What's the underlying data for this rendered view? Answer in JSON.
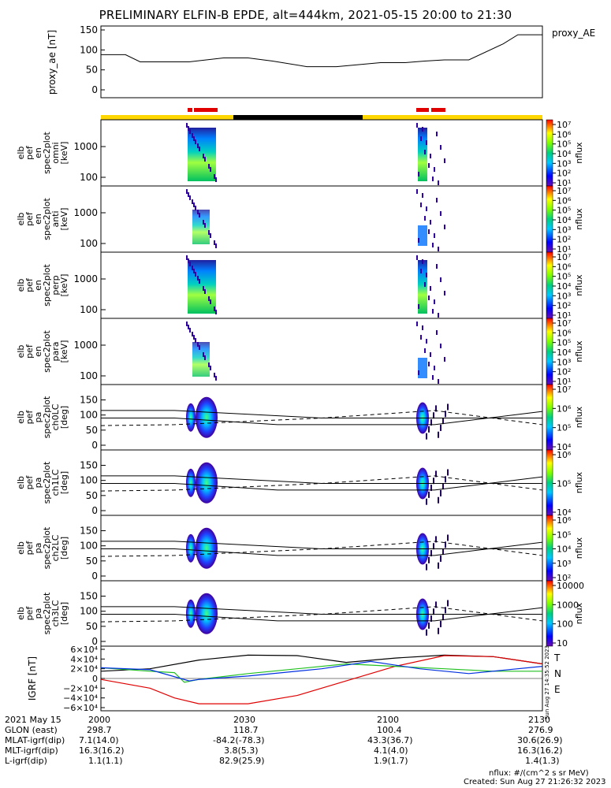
{
  "title": "PRELIMINARY ELFIN-B EPDE, alt=444km, 2021-05-15 20:00 to 21:30",
  "proxy_ae": {
    "ylabel": "proxy_ae [nT]",
    "legend": "proxy_AE",
    "yticks": [
      "150",
      "100",
      "50",
      "0"
    ],
    "ylim": [
      0,
      150
    ],
    "x": [
      0,
      5,
      8,
      18,
      25,
      30,
      35,
      42,
      48,
      57,
      62,
      66,
      70,
      75,
      82,
      85,
      90
    ],
    "y": [
      88,
      88,
      70,
      70,
      80,
      80,
      72,
      58,
      58,
      68,
      68,
      72,
      75,
      75,
      115,
      138,
      138
    ]
  },
  "status_bar": {
    "colors": {
      "yellow": "#FFD700",
      "black": "#000000",
      "red": "#E00000"
    }
  },
  "spectrogram_panels": [
    {
      "label": [
        "elb",
        "pef",
        "en",
        "spec2plot",
        "omni",
        "[keV]"
      ],
      "yticks": [
        "1000",
        "100"
      ],
      "cbar_ticks": [
        "10⁷",
        "10⁶",
        "10⁵",
        "10⁴",
        "10³",
        "10²",
        "10¹"
      ],
      "cbar_label": "nflux"
    },
    {
      "label": [
        "elb",
        "pef",
        "en",
        "spec2plot",
        "anti",
        "[keV]"
      ],
      "yticks": [
        "1000",
        "100"
      ],
      "cbar_ticks": [
        "10⁷",
        "10⁶",
        "10⁵",
        "10⁴",
        "10³",
        "10²",
        "10¹"
      ],
      "cbar_label": "nflux"
    },
    {
      "label": [
        "elb",
        "pef",
        "en",
        "spec2plot",
        "perp",
        "[keV]"
      ],
      "yticks": [
        "1000",
        "100"
      ],
      "cbar_ticks": [
        "10⁷",
        "10⁶",
        "10⁵",
        "10⁴",
        "10³",
        "10²",
        "10¹"
      ],
      "cbar_label": "nflux"
    },
    {
      "label": [
        "elb",
        "pef",
        "en",
        "spec2plot",
        "para",
        "[keV]"
      ],
      "yticks": [
        "1000",
        "100"
      ],
      "cbar_ticks": [
        "10⁷",
        "10⁶",
        "10⁵",
        "10⁴",
        "10³",
        "10²",
        "10¹"
      ],
      "cbar_label": "nflux"
    }
  ],
  "pitch_panels": [
    {
      "label": [
        "elb",
        "pef",
        "pa",
        "spec2plot",
        "ch0LC",
        "[deg]"
      ],
      "yticks": [
        "150",
        "100",
        "50",
        "0"
      ],
      "cbar_ticks": [
        "10⁷",
        "10⁶",
        "10⁵",
        "10⁴"
      ],
      "cbar_label": "nflux"
    },
    {
      "label": [
        "elb",
        "pef",
        "pa",
        "spec2plot",
        "ch1LC",
        "[deg]"
      ],
      "yticks": [
        "150",
        "100",
        "50",
        "0"
      ],
      "cbar_ticks": [
        "10⁶",
        "10⁵",
        "10⁴"
      ],
      "cbar_label": "nflux"
    },
    {
      "label": [
        "elb",
        "pef",
        "pa",
        "spec2plot",
        "ch2LC",
        "[deg]"
      ],
      "yticks": [
        "150",
        "100",
        "50",
        "0"
      ],
      "cbar_ticks": [
        "10⁶",
        "10⁵",
        "10⁴",
        "10³",
        "10²"
      ],
      "cbar_label": "nflux"
    },
    {
      "label": [
        "elb",
        "pef",
        "pa",
        "spec2plot",
        "ch3LC",
        "[deg]"
      ],
      "yticks": [
        "150",
        "100",
        "50",
        "0"
      ],
      "cbar_ticks": [
        "10000",
        "1000",
        "100",
        "10"
      ],
      "cbar_label": "nflux"
    }
  ],
  "igrf": {
    "ylabel": "IGRF [nT]",
    "yticks": [
      "6×10⁴",
      "4×10⁴",
      "2×10⁴",
      "0",
      "−2×10⁴",
      "−4×10⁴",
      "−6×10⁴"
    ],
    "legend": [
      "T",
      "N",
      "E"
    ],
    "side_text": "Sun Aug 27 14:35:52 2023"
  },
  "chart_data": [
    {
      "type": "line",
      "title": "PRELIMINARY ELFIN-B EPDE, alt=444km, 2021-05-15 20:00 to 21:30",
      "ylabel": "proxy_ae [nT]",
      "ylim": [
        0,
        150
      ],
      "series": [
        {
          "name": "proxy_AE",
          "x": [
            0,
            5,
            8,
            18,
            25,
            30,
            35,
            42,
            48,
            57,
            62,
            66,
            70,
            75,
            82,
            85,
            90
          ],
          "y": [
            88,
            88,
            70,
            70,
            80,
            80,
            72,
            58,
            58,
            68,
            68,
            72,
            75,
            75,
            115,
            138,
            138
          ]
        }
      ]
    },
    {
      "type": "line",
      "ylabel": "IGRF [nT]",
      "ylim": [
        -60000,
        60000
      ],
      "series": [
        {
          "name": "T",
          "x": [
            0,
            10,
            20,
            30,
            40,
            50,
            60,
            70,
            80,
            90
          ],
          "y": [
            15000,
            20000,
            38000,
            48000,
            47000,
            33000,
            42000,
            48000,
            45000,
            30000
          ]
        },
        {
          "name": "N",
          "x": [
            0,
            10,
            15,
            20,
            30,
            40,
            50,
            60,
            70,
            80,
            90
          ],
          "y": [
            -2000,
            -20000,
            -40000,
            -52000,
            -52000,
            -35000,
            -5000,
            25000,
            47000,
            45000,
            30000
          ]
        },
        {
          "name": "E",
          "x": [
            0,
            10,
            15,
            17,
            20,
            30,
            40,
            50,
            60,
            70,
            80,
            90
          ],
          "y": [
            22000,
            15000,
            12000,
            -8000,
            -2000,
            10000,
            20000,
            30000,
            25000,
            20000,
            15000,
            15000
          ]
        }
      ]
    }
  ],
  "footer": {
    "rows": [
      {
        "label": "2021 May 15",
        "vals": [
          "2000",
          "2030",
          "2100",
          "2130"
        ]
      },
      {
        "label": "GLON (east)",
        "vals": [
          "298.7",
          "118.7",
          "100.4",
          "276.9"
        ]
      },
      {
        "label": "MLAT-igrf(dip)",
        "vals": [
          "7.1(14.0)",
          "-84.2(-78.3)",
          "43.3(36.7)",
          "30.6(26.9)"
        ]
      },
      {
        "label": "MLT-igrf(dip)",
        "vals": [
          "16.3(16.2)",
          "3.8(5.3)",
          "4.1(4.0)",
          "16.3(16.2)"
        ]
      },
      {
        "label": "L-igrf(dip)",
        "vals": [
          "1.1(1.1)",
          "82.9(25.9)",
          "1.9(1.7)",
          "1.4(1.3)"
        ]
      }
    ],
    "units_note": "nflux: #/(cm^2 s sr MeV)",
    "created": "Created: Sun Aug 27 21:26:32 2023"
  }
}
